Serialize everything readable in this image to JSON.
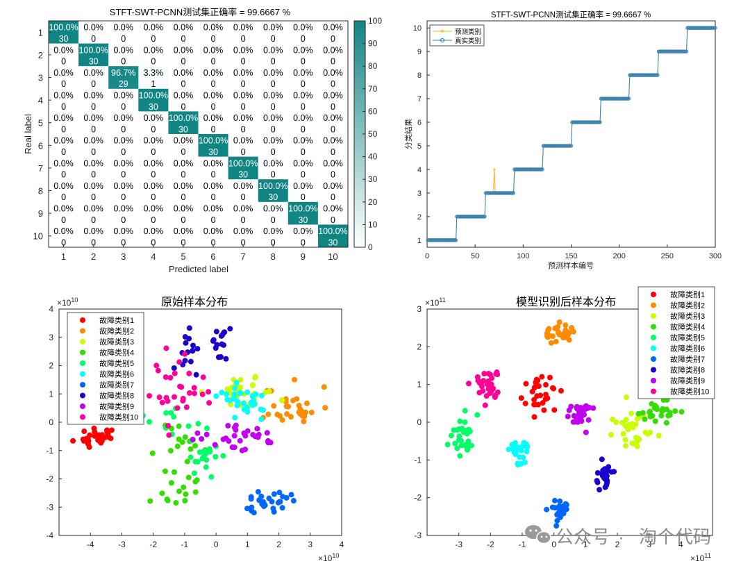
{
  "chart_data": [
    {
      "id": "confusion",
      "type": "heatmap",
      "title": "STFT-SWT-PCNN测试集正确率 = 99.6667 %",
      "xlabel": "Predicted label",
      "ylabel": "Real label",
      "labels": [
        "1",
        "2",
        "3",
        "4",
        "5",
        "6",
        "7",
        "8",
        "9",
        "10"
      ],
      "colorbar": {
        "min": 0,
        "max": 100,
        "ticks": [
          "0",
          "10",
          "20",
          "30",
          "40",
          "50",
          "60",
          "70",
          "80",
          "90",
          "100"
        ],
        "low_color": "#ffffff",
        "high_color": "#118584"
      },
      "counts": [
        [
          30,
          0,
          0,
          0,
          0,
          0,
          0,
          0,
          0,
          0
        ],
        [
          0,
          30,
          0,
          0,
          0,
          0,
          0,
          0,
          0,
          0
        ],
        [
          0,
          0,
          29,
          1,
          0,
          0,
          0,
          0,
          0,
          0
        ],
        [
          0,
          0,
          0,
          30,
          0,
          0,
          0,
          0,
          0,
          0
        ],
        [
          0,
          0,
          0,
          0,
          30,
          0,
          0,
          0,
          0,
          0
        ],
        [
          0,
          0,
          0,
          0,
          0,
          30,
          0,
          0,
          0,
          0
        ],
        [
          0,
          0,
          0,
          0,
          0,
          0,
          30,
          0,
          0,
          0
        ],
        [
          0,
          0,
          0,
          0,
          0,
          0,
          0,
          30,
          0,
          0
        ],
        [
          0,
          0,
          0,
          0,
          0,
          0,
          0,
          0,
          30,
          0
        ],
        [
          0,
          0,
          0,
          0,
          0,
          0,
          0,
          0,
          0,
          30
        ]
      ],
      "percents": [
        [
          "100.0%",
          "0.0%",
          "0.0%",
          "0.0%",
          "0.0%",
          "0.0%",
          "0.0%",
          "0.0%",
          "0.0%",
          "0.0%"
        ],
        [
          "0.0%",
          "100.0%",
          "0.0%",
          "0.0%",
          "0.0%",
          "0.0%",
          "0.0%",
          "0.0%",
          "0.0%",
          "0.0%"
        ],
        [
          "0.0%",
          "0.0%",
          "96.7%",
          "3.3%",
          "0.0%",
          "0.0%",
          "0.0%",
          "0.0%",
          "0.0%",
          "0.0%"
        ],
        [
          "0.0%",
          "0.0%",
          "0.0%",
          "100.0%",
          "0.0%",
          "0.0%",
          "0.0%",
          "0.0%",
          "0.0%",
          "0.0%"
        ],
        [
          "0.0%",
          "0.0%",
          "0.0%",
          "0.0%",
          "100.0%",
          "0.0%",
          "0.0%",
          "0.0%",
          "0.0%",
          "0.0%"
        ],
        [
          "0.0%",
          "0.0%",
          "0.0%",
          "0.0%",
          "0.0%",
          "100.0%",
          "0.0%",
          "0.0%",
          "0.0%",
          "0.0%"
        ],
        [
          "0.0%",
          "0.0%",
          "0.0%",
          "0.0%",
          "0.0%",
          "0.0%",
          "100.0%",
          "0.0%",
          "0.0%",
          "0.0%"
        ],
        [
          "0.0%",
          "0.0%",
          "0.0%",
          "0.0%",
          "0.0%",
          "0.0%",
          "0.0%",
          "100.0%",
          "0.0%",
          "0.0%"
        ],
        [
          "0.0%",
          "0.0%",
          "0.0%",
          "0.0%",
          "0.0%",
          "0.0%",
          "0.0%",
          "0.0%",
          "100.0%",
          "0.0%"
        ],
        [
          "0.0%",
          "0.0%",
          "0.0%",
          "0.0%",
          "0.0%",
          "0.0%",
          "0.0%",
          "0.0%",
          "0.0%",
          "100.0%"
        ]
      ]
    },
    {
      "id": "steps",
      "type": "line",
      "title": "STFT-SWT-PCNN测试集正确率 = 99.6667 %",
      "xlabel": "预测样本编号",
      "ylabel": "分类结果",
      "xlim": [
        0,
        300
      ],
      "ylim": [
        0.7,
        10.3
      ],
      "xticks": [
        "0",
        "50",
        "100",
        "150",
        "200",
        "250",
        "300"
      ],
      "yticks": [
        "1",
        "2",
        "3",
        "4",
        "5",
        "6",
        "7",
        "8",
        "9",
        "10"
      ],
      "legend_position": "top-left",
      "series": [
        {
          "name": "预测类别",
          "color": "#f5b22e",
          "marker": "star",
          "segments": [
            [
              1,
              30,
              1
            ],
            [
              31,
              60,
              2
            ],
            [
              61,
              69,
              3
            ],
            [
              70,
              70,
              4
            ],
            [
              71,
              90,
              3
            ],
            [
              91,
              120,
              4
            ],
            [
              121,
              150,
              5
            ],
            [
              151,
              180,
              6
            ],
            [
              181,
              210,
              7
            ],
            [
              211,
              240,
              8
            ],
            [
              241,
              270,
              9
            ],
            [
              271,
              300,
              10
            ]
          ]
        },
        {
          "name": "真实类别",
          "color": "#2f7fb9",
          "marker": "circle",
          "segments": [
            [
              1,
              30,
              1
            ],
            [
              31,
              60,
              2
            ],
            [
              61,
              90,
              3
            ],
            [
              91,
              120,
              4
            ],
            [
              121,
              150,
              5
            ],
            [
              151,
              180,
              6
            ],
            [
              181,
              210,
              7
            ],
            [
              211,
              240,
              8
            ],
            [
              241,
              270,
              9
            ],
            [
              271,
              300,
              10
            ]
          ]
        }
      ]
    },
    {
      "id": "orig",
      "type": "scatter",
      "title": "原始样本分布",
      "xlim": [
        -5,
        4
      ],
      "ylim": [
        -4,
        4
      ],
      "xticks": [
        "-4",
        "-3",
        "-2",
        "-1",
        "0",
        "1",
        "2",
        "3",
        "4"
      ],
      "yticks": [
        "-4",
        "-3",
        "-2",
        "-1",
        "0",
        "1",
        "2",
        "3",
        "4"
      ],
      "x_multiplier_base": "×10",
      "x_multiplier_exp": "10",
      "y_multiplier_base": "×10",
      "y_multiplier_exp": "10",
      "legend_position": "top-left",
      "seed": 11,
      "groups": [
        {
          "name": "故障类别1",
          "color": "#ff0000",
          "clusters": [
            {
              "cx": -3.8,
              "cy": -0.5,
              "sx": 0.3,
              "sy": 0.22,
              "n": 30
            }
          ]
        },
        {
          "name": "故障类别2",
          "color": "#ff8c00",
          "clusters": [
            {
              "cx": 2.4,
              "cy": 0.55,
              "sx": 0.45,
              "sy": 0.35,
              "n": 30
            }
          ]
        },
        {
          "name": "故障类别3",
          "color": "#c8ff00",
          "clusters": [
            {
              "cx": 0.9,
              "cy": 1.05,
              "sx": 0.55,
              "sy": 0.28,
              "n": 30
            }
          ]
        },
        {
          "name": "故障类别4",
          "color": "#33dd00",
          "clusters": [
            {
              "cx": -0.9,
              "cy": -0.8,
              "sx": 0.5,
              "sy": 0.45,
              "n": 14
            },
            {
              "cx": -1.2,
              "cy": -2.4,
              "sx": 0.4,
              "sy": 0.45,
              "n": 16
            }
          ]
        },
        {
          "name": "故障类别5",
          "color": "#00ff66",
          "clusters": [
            {
              "cx": -1.2,
              "cy": -0.3,
              "sx": 0.4,
              "sy": 0.6,
              "n": 15
            },
            {
              "cx": -0.4,
              "cy": -1.3,
              "sx": 0.3,
              "sy": 0.3,
              "n": 15
            }
          ]
        },
        {
          "name": "故障类别6",
          "color": "#00ffff",
          "clusters": [
            {
              "cx": 0.9,
              "cy": 0.75,
              "sx": 0.5,
              "sy": 0.35,
              "n": 30
            }
          ]
        },
        {
          "name": "故障类别7",
          "color": "#0066ff",
          "clusters": [
            {
              "cx": 1.7,
              "cy": -2.75,
              "sx": 0.45,
              "sy": 0.18,
              "n": 30
            }
          ]
        },
        {
          "name": "故障类别8",
          "color": "#1a00cc",
          "clusters": [
            {
              "cx": -0.85,
              "cy": 2.6,
              "sx": 0.18,
              "sy": 0.4,
              "n": 15
            },
            {
              "cx": 0.05,
              "cy": 2.6,
              "sx": 0.17,
              "sy": 0.4,
              "n": 15
            }
          ]
        },
        {
          "name": "故障类别9",
          "color": "#c000f0",
          "clusters": [
            {
              "cx": 0.8,
              "cy": -0.45,
              "sx": 0.7,
              "sy": 0.25,
              "n": 30
            }
          ]
        },
        {
          "name": "故障类别10",
          "color": "#ff0099",
          "clusters": [
            {
              "cx": -1.2,
              "cy": 1.2,
              "sx": 0.45,
              "sy": 0.55,
              "n": 30
            }
          ]
        }
      ]
    },
    {
      "id": "model",
      "type": "scatter",
      "title": "模型识别后样本分布",
      "xlim": [
        -4,
        5
      ],
      "ylim": [
        -3,
        3
      ],
      "xticks": [
        "-3",
        "-2",
        "-1",
        "0",
        "1",
        "2",
        "3",
        "4"
      ],
      "yticks": [
        "-3",
        "-2",
        "-1",
        "0",
        "1",
        "2",
        "3"
      ],
      "x_multiplier_base": "×10",
      "x_multiplier_exp": "11",
      "y_multiplier_base": "×10",
      "y_multiplier_exp": "11",
      "legend_position": "top-right",
      "seed": 23,
      "groups": [
        {
          "name": "故障类别1",
          "color": "#ff0000",
          "clusters": [
            {
              "cx": -0.35,
              "cy": 0.7,
              "sx": 0.25,
              "sy": 0.22,
              "n": 30
            }
          ]
        },
        {
          "name": "故障类别2",
          "color": "#ff8c00",
          "clusters": [
            {
              "cx": 0.1,
              "cy": 2.35,
              "sx": 0.25,
              "sy": 0.12,
              "n": 30
            }
          ]
        },
        {
          "name": "故障类别3",
          "color": "#c8ff00",
          "clusters": [
            {
              "cx": 2.3,
              "cy": -0.2,
              "sx": 0.4,
              "sy": 0.28,
              "n": 30
            }
          ]
        },
        {
          "name": "故障类别4",
          "color": "#33dd00",
          "clusters": [
            {
              "cx": 3.3,
              "cy": 0.3,
              "sx": 0.3,
              "sy": 0.14,
              "n": 30
            }
          ]
        },
        {
          "name": "故障类别5",
          "color": "#00ff66",
          "clusters": [
            {
              "cx": -2.9,
              "cy": -0.4,
              "sx": 0.22,
              "sy": 0.4,
              "n": 30
            }
          ]
        },
        {
          "name": "故障类别6",
          "color": "#00ffff",
          "clusters": [
            {
              "cx": -1.05,
              "cy": -0.75,
              "sx": 0.15,
              "sy": 0.14,
              "n": 30
            }
          ]
        },
        {
          "name": "故障类别7",
          "color": "#0066ff",
          "clusters": [
            {
              "cx": 0.15,
              "cy": -2.3,
              "sx": 0.15,
              "sy": 0.15,
              "n": 30
            }
          ]
        },
        {
          "name": "故障类别8",
          "color": "#1a00cc",
          "clusters": [
            {
              "cx": 1.6,
              "cy": -1.4,
              "sx": 0.13,
              "sy": 0.2,
              "n": 30
            }
          ]
        },
        {
          "name": "故障类别9",
          "color": "#c000f0",
          "clusters": [
            {
              "cx": 0.8,
              "cy": 0.2,
              "sx": 0.18,
              "sy": 0.17,
              "n": 30
            }
          ]
        },
        {
          "name": "故障类别10",
          "color": "#ff0099",
          "clusters": [
            {
              "cx": -2.1,
              "cy": 1.05,
              "sx": 0.2,
              "sy": 0.25,
              "n": 30
            }
          ]
        }
      ]
    }
  ],
  "watermark": {
    "prefix": "公众号",
    "sep": "·",
    "name": "淘个代码"
  }
}
